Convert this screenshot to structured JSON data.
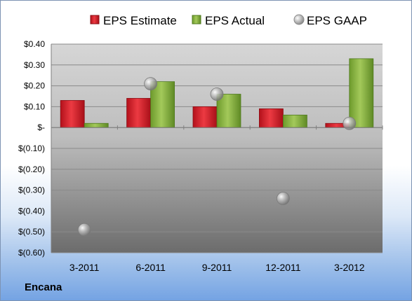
{
  "company": "Encana",
  "chart_data": {
    "type": "bar",
    "categories": [
      "3-2011",
      "6-2011",
      "9-2011",
      "12-2011",
      "3-2012"
    ],
    "series": [
      {
        "name": "EPS Estimate",
        "kind": "bar",
        "color": "#d0202a",
        "values": [
          0.13,
          0.14,
          0.1,
          0.09,
          0.02
        ]
      },
      {
        "name": "EPS Actual",
        "kind": "bar",
        "color": "#86b03c",
        "values": [
          0.02,
          0.22,
          0.16,
          0.06,
          0.33
        ]
      },
      {
        "name": "EPS GAAP",
        "kind": "scatter",
        "color": "#a0a0a0",
        "values": [
          -0.49,
          0.21,
          0.16,
          -0.34,
          0.02
        ]
      }
    ],
    "yticks": [
      0.4,
      0.3,
      0.2,
      0.1,
      0,
      -0.1,
      -0.2,
      -0.3,
      -0.4,
      -0.5,
      -0.6
    ],
    "ytick_labels": [
      "$0.40",
      "$0.30",
      "$0.20",
      "$0.10",
      "$-",
      "$(0.10)",
      "$(0.20)",
      "$(0.30)",
      "$(0.40)",
      "$(0.50)",
      "$(0.60)"
    ],
    "ylim": [
      -0.6,
      0.4
    ],
    "legend_position": "top",
    "grid": true
  }
}
